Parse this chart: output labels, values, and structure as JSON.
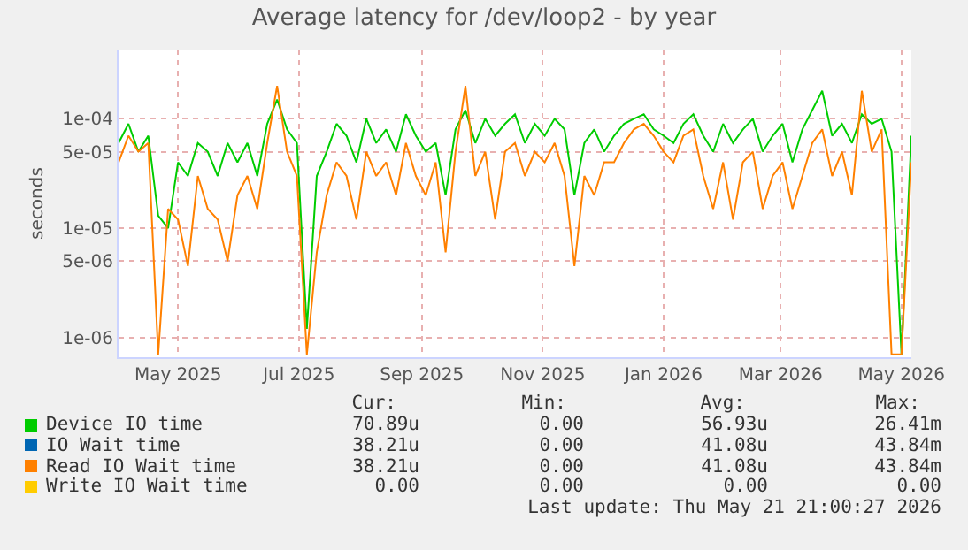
{
  "chart_data": {
    "type": "line",
    "title": "Average latency for /dev/loop2 - by year",
    "ylabel": "seconds",
    "x": [
      "2025-04-16",
      "2025-04-21",
      "2025-04-26",
      "2025-05-01",
      "2025-05-06",
      "2025-05-11",
      "2025-05-16",
      "2025-05-21",
      "2025-05-26",
      "2025-05-31",
      "2025-06-05",
      "2025-06-10",
      "2025-06-15",
      "2025-06-20",
      "2025-06-25",
      "2025-06-30",
      "2025-07-05",
      "2025-07-10",
      "2025-07-15",
      "2025-07-20",
      "2025-07-25",
      "2025-07-30",
      "2025-08-04",
      "2025-08-09",
      "2025-08-14",
      "2025-08-19",
      "2025-08-24",
      "2025-08-29",
      "2025-09-03",
      "2025-09-08",
      "2025-09-13",
      "2025-09-18",
      "2025-09-23",
      "2025-09-28",
      "2025-10-03",
      "2025-10-08",
      "2025-10-13",
      "2025-10-18",
      "2025-10-23",
      "2025-10-28",
      "2025-11-02",
      "2025-11-07",
      "2025-11-12",
      "2025-11-17",
      "2025-11-22",
      "2025-11-27",
      "2025-12-02",
      "2025-12-07",
      "2025-12-12",
      "2025-12-17",
      "2025-12-22",
      "2025-12-27",
      "2026-01-01",
      "2026-01-06",
      "2026-01-11",
      "2026-01-16",
      "2026-01-21",
      "2026-01-26",
      "2026-01-31",
      "2026-02-05",
      "2026-02-10",
      "2026-02-15",
      "2026-02-20",
      "2026-02-25",
      "2026-03-02",
      "2026-03-07",
      "2026-03-12",
      "2026-03-17",
      "2026-03-22",
      "2026-03-27",
      "2026-04-01",
      "2026-04-06",
      "2026-04-11",
      "2026-04-16",
      "2026-04-21",
      "2026-04-26",
      "2026-05-01",
      "2026-05-06",
      "2026-05-11",
      "2026-05-16",
      "2026-05-21"
    ],
    "series": [
      {
        "name": "Device IO time",
        "color": "#00cc00",
        "values": [
          6e-05,
          9e-05,
          5e-05,
          7e-05,
          1.3e-05,
          1e-05,
          4e-05,
          3e-05,
          6e-05,
          5e-05,
          3e-05,
          6e-05,
          4e-05,
          6e-05,
          3e-05,
          9e-05,
          0.00015,
          8e-05,
          6e-05,
          1.2e-06,
          3e-05,
          5e-05,
          9e-05,
          7e-05,
          4e-05,
          0.0001,
          6e-05,
          8e-05,
          5e-05,
          0.00011,
          7e-05,
          5e-05,
          6e-05,
          2e-05,
          8e-05,
          0.00012,
          6e-05,
          0.0001,
          7e-05,
          9e-05,
          0.00011,
          6e-05,
          9e-05,
          7e-05,
          0.0001,
          8e-05,
          2e-05,
          6e-05,
          8e-05,
          5e-05,
          7e-05,
          9e-05,
          0.0001,
          0.00011,
          8e-05,
          7e-05,
          6e-05,
          9e-05,
          0.00011,
          7e-05,
          5e-05,
          9e-05,
          6e-05,
          8e-05,
          0.0001,
          5e-05,
          7e-05,
          9e-05,
          4e-05,
          8e-05,
          0.00012,
          0.00018,
          7e-05,
          9e-05,
          6e-05,
          0.00011,
          9e-05,
          0.0001,
          5e-05,
          7e-07,
          7e-05
        ]
      },
      {
        "name": "IO Wait time",
        "color": "#0066b3",
        "values": [
          null,
          null,
          null,
          null,
          null,
          null,
          null,
          null,
          null,
          null,
          null,
          null,
          null,
          null,
          null,
          null,
          null,
          null,
          null,
          null,
          null,
          null,
          null,
          null,
          null,
          null,
          null,
          null,
          null,
          null,
          null,
          null,
          null,
          null,
          null,
          null,
          null,
          null,
          null,
          null,
          null,
          null,
          null,
          null,
          null,
          null,
          null,
          null,
          null,
          null,
          null,
          null,
          null,
          null,
          null,
          null,
          null,
          null,
          null,
          null,
          null,
          null,
          null,
          null,
          null,
          null,
          null,
          null,
          null,
          null,
          null,
          null,
          null,
          null,
          null,
          null,
          null,
          null,
          null,
          null,
          null
        ]
      },
      {
        "name": "Read IO Wait time",
        "color": "#ff8000",
        "values": [
          4e-05,
          7e-05,
          5e-05,
          6e-05,
          7e-07,
          1.5e-05,
          1.2e-05,
          4.5e-06,
          3e-05,
          1.5e-05,
          1.2e-05,
          5e-06,
          2e-05,
          3e-05,
          1.5e-05,
          6e-05,
          0.0002,
          5e-05,
          3e-05,
          7e-07,
          6e-06,
          2e-05,
          4e-05,
          3e-05,
          1.2e-05,
          5e-05,
          3e-05,
          4e-05,
          2e-05,
          6e-05,
          3e-05,
          2e-05,
          4e-05,
          6e-06,
          5e-05,
          0.0002,
          3e-05,
          5e-05,
          1.2e-05,
          5e-05,
          6e-05,
          3e-05,
          5e-05,
          4e-05,
          6e-05,
          3e-05,
          4.5e-06,
          3e-05,
          2e-05,
          4e-05,
          4e-05,
          6e-05,
          8e-05,
          9e-05,
          7e-05,
          5e-05,
          4e-05,
          7e-05,
          8e-05,
          3e-05,
          1.5e-05,
          4e-05,
          1.2e-05,
          4e-05,
          5e-05,
          1.5e-05,
          3e-05,
          4e-05,
          1.5e-05,
          3e-05,
          6e-05,
          8e-05,
          3e-05,
          5e-05,
          2e-05,
          0.00018,
          5e-05,
          8e-05,
          7e-07,
          7e-07,
          4e-05
        ]
      },
      {
        "name": "Write IO Wait time",
        "color": "#ffcc00",
        "values": [
          null,
          null,
          null,
          null,
          null,
          null,
          null,
          null,
          null,
          null,
          null,
          null,
          null,
          null,
          null,
          null,
          null,
          null,
          null,
          null,
          null,
          null,
          null,
          null,
          null,
          null,
          null,
          null,
          null,
          null,
          null,
          null,
          null,
          null,
          null,
          null,
          null,
          null,
          null,
          null,
          null,
          null,
          null,
          null,
          null,
          null,
          null,
          null,
          null,
          null,
          null,
          null,
          null,
          null,
          null,
          null,
          null,
          null,
          null,
          null,
          null,
          null,
          null,
          null,
          null,
          null,
          null,
          null,
          null,
          null,
          null,
          null,
          null,
          null,
          null,
          null,
          null,
          null,
          null,
          null,
          null
        ]
      }
    ],
    "xlim": [
      "2025-04-16",
      "2026-05-21"
    ],
    "xticks": [
      {
        "value": "2025-05-16",
        "label": "May 2025"
      },
      {
        "value": "2025-07-16",
        "label": "Jul 2025"
      },
      {
        "value": "2025-09-16",
        "label": "Sep 2025"
      },
      {
        "value": "2025-11-16",
        "label": "Nov 2025"
      },
      {
        "value": "2026-01-16",
        "label": "Jan 2026"
      },
      {
        "value": "2026-03-16",
        "label": "Mar 2026"
      },
      {
        "value": "2026-05-16",
        "label": "May 2026"
      }
    ],
    "ylim": [
      6.6e-07,
      0.00043
    ],
    "yticks": [
      {
        "value": 1e-06,
        "label": "1e-06"
      },
      {
        "value": 5e-06,
        "label": "5e-06"
      },
      {
        "value": 1e-05,
        "label": "1e-05"
      },
      {
        "value": 5e-05,
        "label": "5e-05"
      },
      {
        "value": 0.0001,
        "label": "1e-04"
      }
    ],
    "log": "y",
    "grid": true,
    "legend": "bottom",
    "annotations": [
      "Cur:",
      "Min:",
      "Avg:",
      "Max:",
      "70.89u",
      "0.00",
      "56.93u",
      "26.41m",
      "38.21u",
      "0.00",
      "41.08u",
      "43.84m",
      "38.21u",
      "0.00",
      "41.08u",
      "43.84m",
      "0.00",
      "0.00",
      "0.00",
      "0.00",
      "Last update: Thu May 21 21:00:27 2026"
    ]
  }
}
